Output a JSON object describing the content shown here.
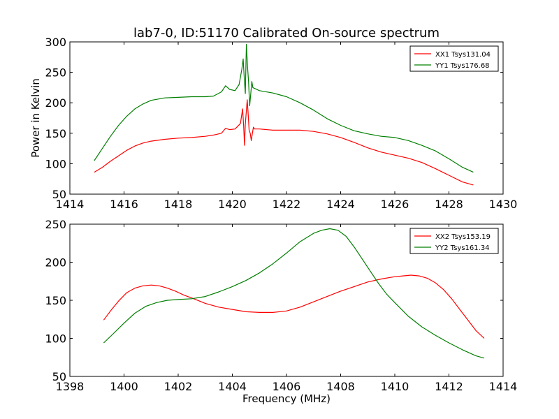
{
  "figure_title": "lab7-0, ID:51170 Calibrated On-source spectrum",
  "chart_data": [
    {
      "type": "line",
      "title": "lab7-0, ID:51170 Calibrated On-source spectrum",
      "xlabel": "",
      "ylabel": "Power in Kelvin",
      "xlim": [
        1414,
        1430
      ],
      "ylim": [
        50,
        300
      ],
      "xticks": [
        "1414",
        "1416",
        "1418",
        "1420",
        "1422",
        "1424",
        "1426",
        "1428",
        "1430"
      ],
      "yticks": [
        "50",
        "100",
        "150",
        "200",
        "250",
        "300"
      ],
      "grid": false,
      "legend_position": "top-right",
      "series": [
        {
          "name": "XX1 Tsys131.04",
          "color": "#ff0000",
          "x": [
            1414.9,
            1415.2,
            1415.5,
            1415.8,
            1416.1,
            1416.4,
            1416.7,
            1417.0,
            1417.5,
            1418.0,
            1418.5,
            1419.0,
            1419.3,
            1419.6,
            1419.75,
            1419.9,
            1420.1,
            1420.3,
            1420.38,
            1420.42,
            1420.45,
            1420.48,
            1420.55,
            1420.58,
            1420.62,
            1420.66,
            1420.7,
            1420.74,
            1420.78,
            1420.82,
            1421.0,
            1421.5,
            1422.0,
            1422.5,
            1423.0,
            1423.5,
            1424.0,
            1424.5,
            1425.0,
            1425.5,
            1426.0,
            1426.5,
            1427.0,
            1427.5,
            1428.0,
            1428.5,
            1428.9
          ],
          "y": [
            86,
            94,
            104,
            113,
            122,
            129,
            134,
            137,
            140,
            142,
            143,
            145,
            147,
            150,
            158,
            156,
            157,
            166,
            190,
            160,
            130,
            165,
            205,
            185,
            155,
            150,
            138,
            150,
            160,
            157,
            157,
            155,
            155,
            155,
            153,
            149,
            143,
            135,
            126,
            119,
            114,
            109,
            102,
            92,
            81,
            70,
            65
          ]
        },
        {
          "name": "YY1 Tsys176.68",
          "color": "#007f00",
          "x": [
            1414.9,
            1415.2,
            1415.5,
            1415.8,
            1416.1,
            1416.4,
            1416.7,
            1417.0,
            1417.5,
            1418.0,
            1418.5,
            1419.0,
            1419.3,
            1419.6,
            1419.75,
            1419.9,
            1420.1,
            1420.25,
            1420.35,
            1420.4,
            1420.44,
            1420.48,
            1420.52,
            1420.56,
            1420.6,
            1420.64,
            1420.68,
            1420.72,
            1420.76,
            1420.85,
            1421.0,
            1421.5,
            1422.0,
            1422.5,
            1423.0,
            1423.5,
            1424.0,
            1424.5,
            1425.0,
            1425.5,
            1426.0,
            1426.5,
            1427.0,
            1427.5,
            1428.0,
            1428.5,
            1428.9
          ],
          "y": [
            105,
            125,
            145,
            163,
            178,
            190,
            198,
            204,
            208,
            209,
            210,
            210,
            211,
            218,
            228,
            222,
            220,
            230,
            255,
            272,
            240,
            215,
            296,
            260,
            235,
            195,
            215,
            235,
            225,
            223,
            220,
            216,
            210,
            200,
            188,
            174,
            163,
            154,
            149,
            145,
            143,
            138,
            130,
            121,
            108,
            94,
            86
          ]
        }
      ]
    },
    {
      "type": "line",
      "title": "",
      "xlabel": "Frequency (MHz)",
      "ylabel": "",
      "xlim": [
        1398,
        1414
      ],
      "ylim": [
        50,
        250
      ],
      "xticks": [
        "1398",
        "1400",
        "1402",
        "1404",
        "1406",
        "1408",
        "1410",
        "1412",
        "1414"
      ],
      "yticks": [
        "50",
        "100",
        "150",
        "200",
        "250"
      ],
      "grid": false,
      "legend_position": "top-right",
      "series": [
        {
          "name": "XX2 Tsys153.19",
          "color": "#ff0000",
          "x": [
            1399.25,
            1399.5,
            1399.8,
            1400.1,
            1400.4,
            1400.7,
            1401.0,
            1401.3,
            1401.6,
            1401.9,
            1402.2,
            1402.5,
            1403.0,
            1403.5,
            1404.0,
            1404.5,
            1405.0,
            1405.5,
            1406.0,
            1406.5,
            1407.0,
            1407.5,
            1408.0,
            1408.5,
            1409.0,
            1409.5,
            1410.0,
            1410.3,
            1410.6,
            1410.9,
            1411.2,
            1411.5,
            1411.8,
            1412.1,
            1412.4,
            1412.7,
            1413.0,
            1413.3
          ],
          "y": [
            124,
            136,
            149,
            160,
            166,
            169,
            170,
            169,
            166,
            162,
            157,
            153,
            146,
            141,
            138,
            135,
            134,
            134,
            136,
            141,
            148,
            155,
            162,
            168,
            174,
            178,
            181,
            182,
            183,
            182,
            179,
            173,
            164,
            152,
            138,
            124,
            110,
            100
          ]
        },
        {
          "name": "YY2 Tsys161.34",
          "color": "#007f00",
          "x": [
            1399.25,
            1399.6,
            1400.0,
            1400.4,
            1400.8,
            1401.2,
            1401.6,
            1402.0,
            1402.5,
            1403.0,
            1403.5,
            1404.0,
            1404.5,
            1405.0,
            1405.5,
            1406.0,
            1406.5,
            1407.0,
            1407.3,
            1407.6,
            1407.9,
            1408.2,
            1408.5,
            1408.8,
            1409.1,
            1409.4,
            1409.7,
            1410.0,
            1410.5,
            1411.0,
            1411.5,
            1412.0,
            1412.5,
            1413.0,
            1413.3
          ],
          "y": [
            94,
            106,
            120,
            133,
            142,
            147,
            150,
            151,
            152,
            155,
            161,
            168,
            176,
            186,
            198,
            212,
            227,
            238,
            242,
            244,
            242,
            234,
            220,
            204,
            188,
            172,
            158,
            147,
            129,
            115,
            104,
            94,
            85,
            77,
            74
          ]
        }
      ]
    }
  ]
}
